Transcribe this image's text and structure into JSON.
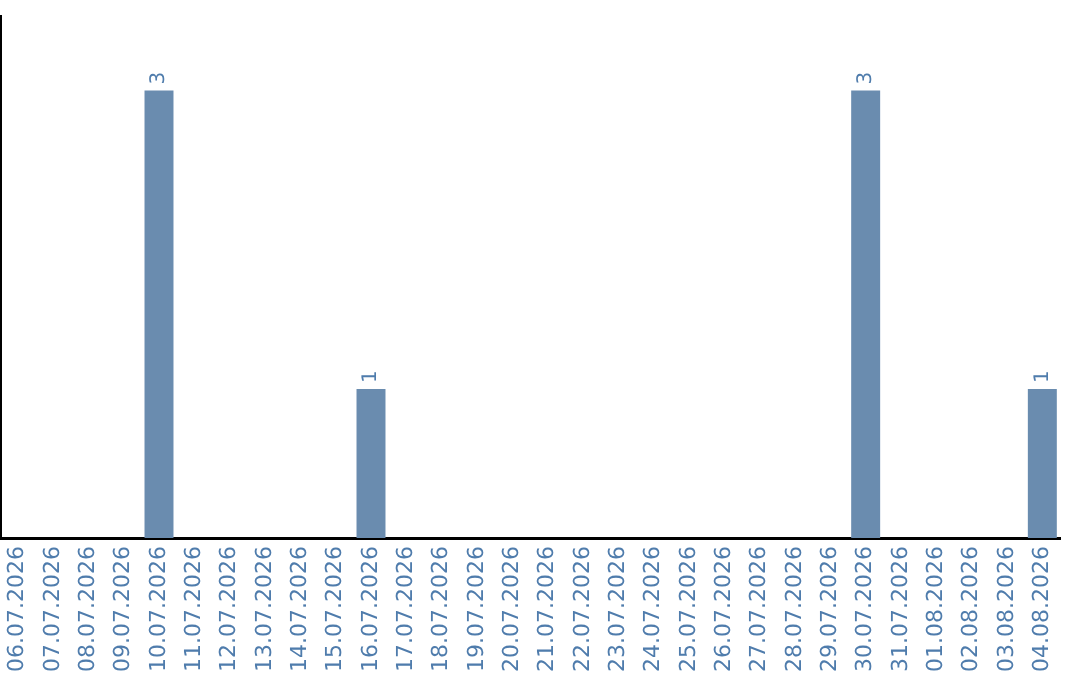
{
  "chart_data": {
    "type": "bar",
    "categories": [
      "06.07.2026",
      "07.07.2026",
      "08.07.2026",
      "09.07.2026",
      "10.07.2026",
      "11.07.2026",
      "12.07.2026",
      "13.07.2026",
      "14.07.2026",
      "15.07.2026",
      "16.07.2026",
      "17.07.2026",
      "18.07.2026",
      "19.07.2026",
      "20.07.2026",
      "21.07.2026",
      "22.07.2026",
      "23.07.2026",
      "24.07.2026",
      "25.07.2026",
      "26.07.2026",
      "27.07.2026",
      "28.07.2026",
      "29.07.2026",
      "30.07.2026",
      "31.07.2026",
      "01.08.2026",
      "02.08.2026",
      "03.08.2026",
      "04.08.2026"
    ],
    "values": [
      0,
      0,
      0,
      0,
      3,
      0,
      0,
      0,
      0,
      0,
      1,
      0,
      0,
      0,
      0,
      0,
      0,
      0,
      0,
      0,
      0,
      0,
      0,
      0,
      3,
      0,
      0,
      0,
      0,
      1
    ],
    "value_labels": [
      null,
      null,
      null,
      null,
      "3",
      null,
      null,
      null,
      null,
      null,
      "1",
      null,
      null,
      null,
      null,
      null,
      null,
      null,
      null,
      null,
      null,
      null,
      null,
      null,
      "3",
      null,
      null,
      null,
      null,
      "1"
    ],
    "color": "#6a8caf",
    "grid": false,
    "legend": false,
    "tick_labels": "x"
  }
}
